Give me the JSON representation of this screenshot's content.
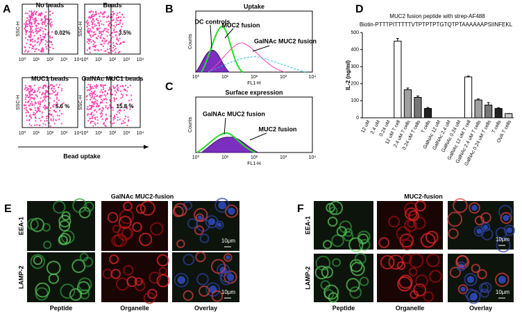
{
  "panel_labels": [
    "A",
    "B",
    "C",
    "D",
    "E",
    "F"
  ],
  "panel_a": {
    "plots": [
      {
        "title": "No beads",
        "percent": "0.02%"
      },
      {
        "title": "Beads",
        "percent": "3.5%"
      },
      {
        "title": "MUC1 beads",
        "percent": "5.6 %"
      },
      {
        "title": "GalNAc MUC1 beads",
        "percent": "15.8 %"
      }
    ],
    "y_label": "SSC-H",
    "x_ticks": [
      "10⁰",
      "10¹",
      "10²",
      "10³",
      "10⁴"
    ],
    "x_label": "Bead uptake"
  },
  "panel_b": {
    "title": "Uptake",
    "y_label": "Counts",
    "x_label": "FL1-H",
    "x_ticks": [
      "10⁰",
      "10¹",
      "10²",
      "10³",
      "10⁴"
    ],
    "annotations": [
      "DC controls",
      "MUC2 fusion",
      "GalNAc MUC2 fusion"
    ]
  },
  "panel_c": {
    "title": "Surface expression",
    "y_label": "Counts",
    "x_label": "FL1-H",
    "x_ticks": [
      "10⁰",
      "10¹",
      "10²",
      "10³",
      "10⁴"
    ],
    "annotations": [
      "GalNAc MUC2 fusion",
      "MUC2 fusion"
    ]
  },
  "chart_data": {
    "type": "bar",
    "title": "MUC2 fusion peptide with strep-AF488",
    "subtitle": "Biotin-PTTTPITTTTTVTPTPTPTGTQTPTAAAAAAPSIINFEKL",
    "y_label": "IL-2 (ng/ml)",
    "categories": [
      "12 uM",
      "2.4 uM",
      "0.24 uM",
      "12 uM T cell",
      "2.4 uM T cells",
      "0.24 uM T cells",
      "T cells",
      "GalNAc 12 uM",
      "GalNAc 2.4 uM",
      "GalNAc 0.24 uM",
      "GalNAc 12 uM T cell",
      "GalNAc 2.4 uM T cells",
      "GalNAc 0.24 uM T cells",
      "T cells",
      "OVA T cells"
    ],
    "values": [
      0,
      0,
      0,
      450,
      165,
      120,
      55,
      0,
      0,
      0,
      240,
      105,
      75,
      55,
      25
    ],
    "errors": [
      0,
      0,
      0,
      15,
      10,
      8,
      6,
      0,
      0,
      0,
      5,
      6,
      15,
      5,
      0
    ],
    "colors": [
      "#ffffff",
      "#ffffff",
      "#ffffff",
      "#ffffff",
      "#a0a0a0",
      "#777777",
      "#222222",
      "#ffffff",
      "#ffffff",
      "#ffffff",
      "#ffffff",
      "#a0a0a0",
      "#777777",
      "#222222",
      "#cccccc"
    ],
    "ylim": [
      0,
      500
    ],
    "yticks": [
      0,
      100,
      200,
      300,
      400,
      500
    ]
  },
  "panel_e": {
    "title": "GalNAc MUC2-fusion",
    "rows": [
      "EEA-1",
      "LAMP-2"
    ],
    "columns": [
      "Peptide",
      "Organelle",
      "Overlay"
    ],
    "scale": "10μm"
  },
  "panel_f": {
    "title": "MUC2-fusion",
    "rows": [
      "EEA-1",
      "LAMP-2"
    ],
    "columns": [
      "Peptide",
      "Organelle",
      "Overlay"
    ],
    "scale": "10μm"
  }
}
